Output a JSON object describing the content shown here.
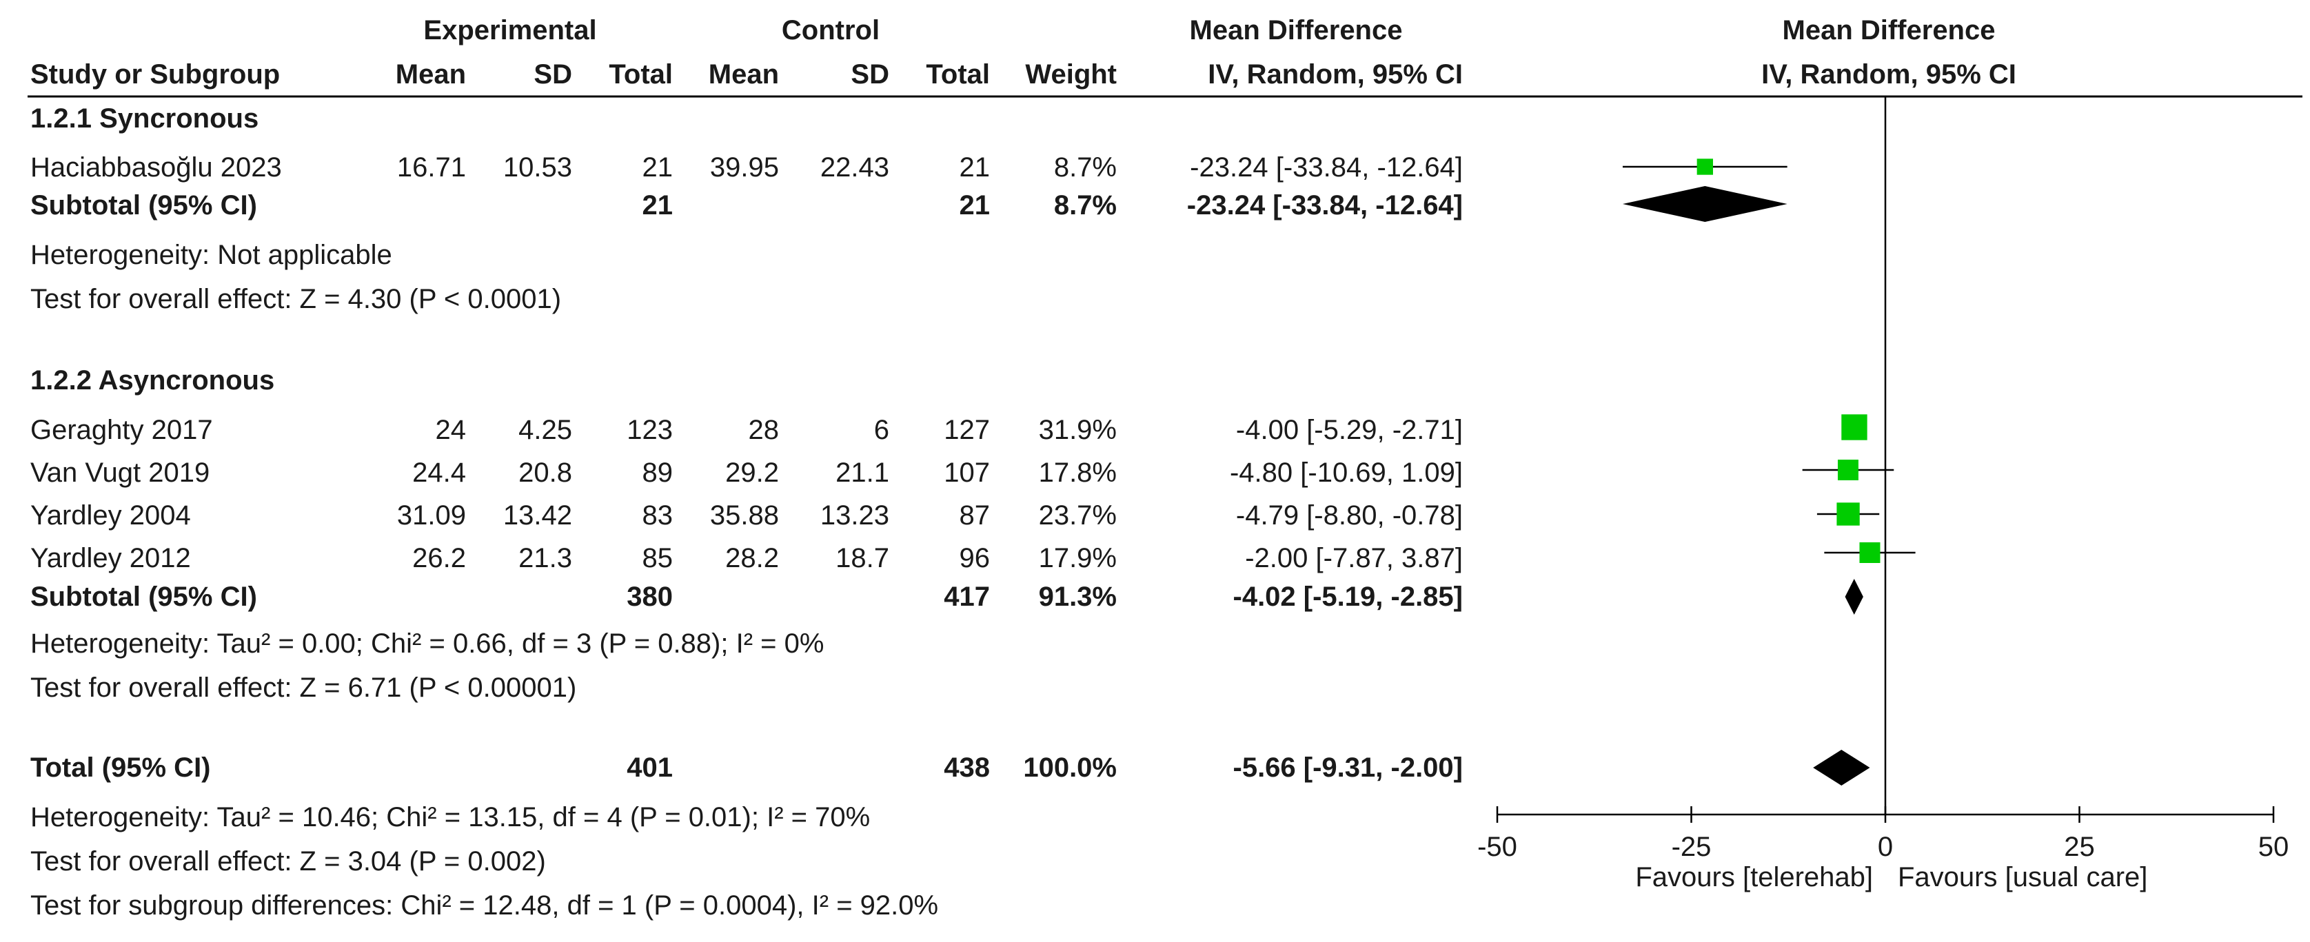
{
  "headers": {
    "experimental": "Experimental",
    "control": "Control",
    "mean_difference": "Mean Difference",
    "plot_mean_difference": "Mean Difference",
    "study_or_subgroup": "Study or Subgroup",
    "exp_mean": "Mean",
    "exp_sd": "SD",
    "exp_total": "Total",
    "ctl_mean": "Mean",
    "ctl_sd": "SD",
    "ctl_total": "Total",
    "weight": "Weight",
    "ci_method": "IV, Random, 95% CI",
    "plot_ci_method": "IV, Random, 95% CI"
  },
  "groups": [
    {
      "title": "1.2.1 Syncronous",
      "studies": [
        {
          "name": "Haciabbasoğlu 2023",
          "exp_mean": "16.71",
          "exp_sd": "10.53",
          "exp_total": "21",
          "ctl_mean": "39.95",
          "ctl_sd": "22.43",
          "ctl_total": "21",
          "weight": "8.7%",
          "ci": "-23.24 [-33.84, -12.64]"
        }
      ],
      "subtotal": {
        "label": "Subtotal (95% CI)",
        "exp_total": "21",
        "ctl_total": "21",
        "weight": "8.7%",
        "ci": "-23.24 [-33.84, -12.64]"
      },
      "heterogeneity": "Heterogeneity: Not applicable",
      "overall_effect": "Test for overall effect: Z = 4.30 (P < 0.0001)"
    },
    {
      "title": "1.2.2 Asyncronous",
      "studies": [
        {
          "name": "Geraghty 2017",
          "exp_mean": "24",
          "exp_sd": "4.25",
          "exp_total": "123",
          "ctl_mean": "28",
          "ctl_sd": "6",
          "ctl_total": "127",
          "weight": "31.9%",
          "ci": "-4.00 [-5.29, -2.71]"
        },
        {
          "name": "Van Vugt 2019",
          "exp_mean": "24.4",
          "exp_sd": "20.8",
          "exp_total": "89",
          "ctl_mean": "29.2",
          "ctl_sd": "21.1",
          "ctl_total": "107",
          "weight": "17.8%",
          "ci": "-4.80 [-10.69, 1.09]"
        },
        {
          "name": "Yardley  2004",
          "exp_mean": "31.09",
          "exp_sd": "13.42",
          "exp_total": "83",
          "ctl_mean": "35.88",
          "ctl_sd": "13.23",
          "ctl_total": "87",
          "weight": "23.7%",
          "ci": "-4.79 [-8.80, -0.78]"
        },
        {
          "name": "Yardley 2012",
          "exp_mean": "26.2",
          "exp_sd": "21.3",
          "exp_total": "85",
          "ctl_mean": "28.2",
          "ctl_sd": "18.7",
          "ctl_total": "96",
          "weight": "17.9%",
          "ci": "-2.00 [-7.87, 3.87]"
        }
      ],
      "subtotal": {
        "label": "Subtotal (95% CI)",
        "exp_total": "380",
        "ctl_total": "417",
        "weight": "91.3%",
        "ci": "-4.02 [-5.19, -2.85]"
      },
      "heterogeneity": "Heterogeneity: Tau² = 0.00; Chi² = 0.66, df = 3 (P = 0.88); I² = 0%",
      "overall_effect": "Test for overall effect: Z = 6.71 (P < 0.00001)"
    }
  ],
  "total": {
    "label": "Total (95% CI)",
    "exp_total": "401",
    "ctl_total": "438",
    "weight": "100.0%",
    "ci": "-5.66 [-9.31, -2.00]",
    "heterogeneity": "Heterogeneity: Tau² = 10.46; Chi² = 13.15, df = 4 (P = 0.01); I² = 70%",
    "overall_effect": "Test for overall effect: Z = 3.04 (P = 0.002)",
    "subgroup_differences": "Test for subgroup differences: Chi² = 12.48, df = 1 (P = 0.0004), I² = 92.0%"
  },
  "colors": {
    "marker": "#00cc00",
    "diamond": "#000000",
    "line": "#000000"
  },
  "chart_data": {
    "type": "forest",
    "title": "Mean Difference",
    "subtitle": "IV, Random, 95% CI",
    "xlim": [
      -50,
      50
    ],
    "ticks": [
      -50,
      -25,
      0,
      25,
      50
    ],
    "tick_labels": [
      "-50",
      "-25",
      "0",
      "25",
      "50"
    ],
    "favours_left": "Favours [telerehab]",
    "favours_right": "Favours [usual care]",
    "studies": [
      {
        "name": "Haciabbasoğlu 2023",
        "md": -23.24,
        "lo": -33.84,
        "hi": -12.64,
        "weight": 8.7
      },
      {
        "name": "Geraghty 2017",
        "md": -4.0,
        "lo": -5.29,
        "hi": -2.71,
        "weight": 31.9
      },
      {
        "name": "Van Vugt 2019",
        "md": -4.8,
        "lo": -10.69,
        "hi": 1.09,
        "weight": 17.8
      },
      {
        "name": "Yardley  2004",
        "md": -4.79,
        "lo": -8.8,
        "hi": -0.78,
        "weight": 23.7
      },
      {
        "name": "Yardley 2012",
        "md": -2.0,
        "lo": -7.87,
        "hi": 3.87,
        "weight": 17.9
      }
    ],
    "summaries": [
      {
        "name": "Subtotal 1.2.1",
        "md": -23.24,
        "lo": -33.84,
        "hi": -12.64
      },
      {
        "name": "Subtotal 1.2.2",
        "md": -4.02,
        "lo": -5.19,
        "hi": -2.85
      },
      {
        "name": "Total",
        "md": -5.66,
        "lo": -9.31,
        "hi": -2.0
      }
    ]
  }
}
